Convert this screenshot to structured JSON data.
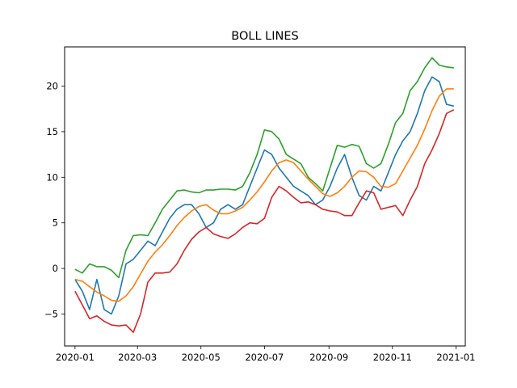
{
  "chart_data": {
    "type": "line",
    "title": "BOLL LINES",
    "xlabel": "",
    "ylabel": "",
    "x_range": [
      "2019-12-22",
      "2021-01-10"
    ],
    "ylim": [
      -8.5,
      24.3
    ],
    "grid": false,
    "x_ticks": [
      "2020-01",
      "2020-03",
      "2020-05",
      "2020-07",
      "2020-09",
      "2020-11",
      "2021-01"
    ],
    "y_ticks": [
      -5,
      0,
      5,
      10,
      15,
      20
    ],
    "colors": [
      "#1f77b4",
      "#ff7f0e",
      "#2ca02c",
      "#d62728"
    ],
    "series": [
      {
        "x": [
          "2020-01-01",
          "2020-01-08",
          "2020-01-15",
          "2020-01-22",
          "2020-01-29",
          "2020-02-05",
          "2020-02-12",
          "2020-02-19",
          "2020-02-26",
          "2020-03-04",
          "2020-03-11",
          "2020-03-18",
          "2020-03-25",
          "2020-04-01",
          "2020-04-08",
          "2020-04-15",
          "2020-04-22",
          "2020-04-29",
          "2020-05-06",
          "2020-05-13",
          "2020-05-20",
          "2020-05-27",
          "2020-06-03",
          "2020-06-10",
          "2020-06-17",
          "2020-06-24",
          "2020-07-01",
          "2020-07-08",
          "2020-07-15",
          "2020-07-22",
          "2020-07-29",
          "2020-08-05",
          "2020-08-12",
          "2020-08-19",
          "2020-08-26",
          "2020-09-02",
          "2020-09-09",
          "2020-09-16",
          "2020-09-23",
          "2020-09-30",
          "2020-10-07",
          "2020-10-14",
          "2020-10-21",
          "2020-10-28",
          "2020-11-04",
          "2020-11-11",
          "2020-11-18",
          "2020-11-25",
          "2020-12-02",
          "2020-12-09",
          "2020-12-16",
          "2020-12-23",
          "2020-12-30"
        ],
        "values": [
          -1.2,
          -2.5,
          -4.5,
          -1.2,
          -4.5,
          -5.0,
          -3.0,
          0.5,
          1.0,
          2.0,
          3.0,
          2.5,
          4.0,
          5.5,
          6.5,
          7.0,
          7.0,
          6.0,
          4.5,
          5.0,
          6.5,
          7.0,
          6.5,
          7.0,
          9.0,
          11.0,
          13.0,
          12.5,
          11.0,
          10.0,
          9.0,
          8.5,
          8.0,
          7.0,
          7.5,
          9.0,
          11.0,
          12.5,
          10.0,
          8.0,
          7.5,
          9.0,
          8.5,
          10.5,
          12.5,
          14.0,
          15.0,
          17.0,
          19.5,
          21.0,
          20.5,
          18.0,
          17.8
        ]
      },
      {
        "x": [
          "2020-01-01",
          "2020-01-08",
          "2020-01-15",
          "2020-01-22",
          "2020-01-29",
          "2020-02-05",
          "2020-02-12",
          "2020-02-19",
          "2020-02-26",
          "2020-03-04",
          "2020-03-11",
          "2020-03-18",
          "2020-03-25",
          "2020-04-01",
          "2020-04-08",
          "2020-04-15",
          "2020-04-22",
          "2020-04-29",
          "2020-05-06",
          "2020-05-13",
          "2020-05-20",
          "2020-05-27",
          "2020-06-03",
          "2020-06-10",
          "2020-06-17",
          "2020-06-24",
          "2020-07-01",
          "2020-07-08",
          "2020-07-15",
          "2020-07-22",
          "2020-07-29",
          "2020-08-05",
          "2020-08-12",
          "2020-08-19",
          "2020-08-26",
          "2020-09-02",
          "2020-09-09",
          "2020-09-16",
          "2020-09-23",
          "2020-09-30",
          "2020-10-07",
          "2020-10-14",
          "2020-10-21",
          "2020-10-28",
          "2020-11-04",
          "2020-11-11",
          "2020-11-18",
          "2020-11-25",
          "2020-12-02",
          "2020-12-09",
          "2020-12-16",
          "2020-12-23",
          "2020-12-30"
        ],
        "values": [
          -1.2,
          -1.4,
          -2.0,
          -2.6,
          -3.0,
          -3.5,
          -3.6,
          -3.0,
          -2.0,
          -0.6,
          0.8,
          1.8,
          2.6,
          3.6,
          4.7,
          5.6,
          6.3,
          6.8,
          7.0,
          6.4,
          6.0,
          6.0,
          6.3,
          6.7,
          7.5,
          8.4,
          9.5,
          10.7,
          11.6,
          11.9,
          11.6,
          10.7,
          9.8,
          9.0,
          8.2,
          7.9,
          8.3,
          9.0,
          10.0,
          10.7,
          10.6,
          10.0,
          9.0,
          8.9,
          9.3,
          10.7,
          12.1,
          13.5,
          15.3,
          17.3,
          18.9,
          19.7,
          19.7
        ]
      },
      {
        "x": [
          "2020-01-01",
          "2020-01-08",
          "2020-01-15",
          "2020-01-22",
          "2020-01-29",
          "2020-02-05",
          "2020-02-12",
          "2020-02-19",
          "2020-02-26",
          "2020-03-04",
          "2020-03-11",
          "2020-03-18",
          "2020-03-25",
          "2020-04-01",
          "2020-04-08",
          "2020-04-15",
          "2020-04-22",
          "2020-04-29",
          "2020-05-06",
          "2020-05-13",
          "2020-05-20",
          "2020-05-27",
          "2020-06-03",
          "2020-06-10",
          "2020-06-17",
          "2020-06-24",
          "2020-07-01",
          "2020-07-08",
          "2020-07-15",
          "2020-07-22",
          "2020-07-29",
          "2020-08-05",
          "2020-08-12",
          "2020-08-19",
          "2020-08-26",
          "2020-09-02",
          "2020-09-09",
          "2020-09-16",
          "2020-09-23",
          "2020-09-30",
          "2020-10-07",
          "2020-10-14",
          "2020-10-21",
          "2020-10-28",
          "2020-11-04",
          "2020-11-11",
          "2020-11-18",
          "2020-11-25",
          "2020-12-02",
          "2020-12-09",
          "2020-12-16",
          "2020-12-23",
          "2020-12-30"
        ],
        "values": [
          -0.1,
          -0.5,
          0.5,
          0.2,
          0.2,
          -0.2,
          -1.0,
          2.0,
          3.6,
          3.7,
          3.6,
          5.0,
          6.5,
          7.5,
          8.5,
          8.6,
          8.4,
          8.3,
          8.6,
          8.6,
          8.7,
          8.7,
          8.6,
          9.0,
          10.5,
          12.5,
          15.2,
          15.0,
          14.2,
          12.5,
          12.0,
          11.5,
          10.0,
          9.3,
          8.5,
          11.0,
          13.5,
          13.3,
          13.6,
          13.4,
          11.5,
          11.0,
          11.5,
          13.6,
          16.0,
          17.0,
          19.5,
          20.5,
          22.0,
          23.1,
          22.3,
          22.1,
          22.0
        ]
      },
      {
        "x": [
          "2020-01-01",
          "2020-01-08",
          "2020-01-15",
          "2020-01-22",
          "2020-01-29",
          "2020-02-05",
          "2020-02-12",
          "2020-02-19",
          "2020-02-26",
          "2020-03-04",
          "2020-03-11",
          "2020-03-18",
          "2020-03-25",
          "2020-04-01",
          "2020-04-08",
          "2020-04-15",
          "2020-04-22",
          "2020-04-29",
          "2020-05-06",
          "2020-05-13",
          "2020-05-20",
          "2020-05-27",
          "2020-06-03",
          "2020-06-10",
          "2020-06-17",
          "2020-06-24",
          "2020-07-01",
          "2020-07-08",
          "2020-07-15",
          "2020-07-22",
          "2020-07-29",
          "2020-08-05",
          "2020-08-12",
          "2020-08-19",
          "2020-08-26",
          "2020-09-02",
          "2020-09-09",
          "2020-09-16",
          "2020-09-23",
          "2020-09-30",
          "2020-10-07",
          "2020-10-14",
          "2020-10-21",
          "2020-10-28",
          "2020-11-04",
          "2020-11-11",
          "2020-11-18",
          "2020-11-25",
          "2020-12-02",
          "2020-12-09",
          "2020-12-16",
          "2020-12-23",
          "2020-12-30"
        ],
        "values": [
          -2.5,
          -4.0,
          -5.5,
          -5.2,
          -5.8,
          -6.2,
          -6.3,
          -6.2,
          -7.0,
          -5.0,
          -1.5,
          -0.5,
          -0.5,
          -0.4,
          0.5,
          2.0,
          3.2,
          4.0,
          4.5,
          3.8,
          3.5,
          3.3,
          3.8,
          4.5,
          5.0,
          4.9,
          5.5,
          7.8,
          9.0,
          8.5,
          7.8,
          7.2,
          7.3,
          7.0,
          6.5,
          6.3,
          6.2,
          5.8,
          5.8,
          7.2,
          8.5,
          8.3,
          6.5,
          6.7,
          6.9,
          5.8,
          7.5,
          9.0,
          11.5,
          13.0,
          14.8,
          17.0,
          17.4
        ]
      }
    ]
  }
}
